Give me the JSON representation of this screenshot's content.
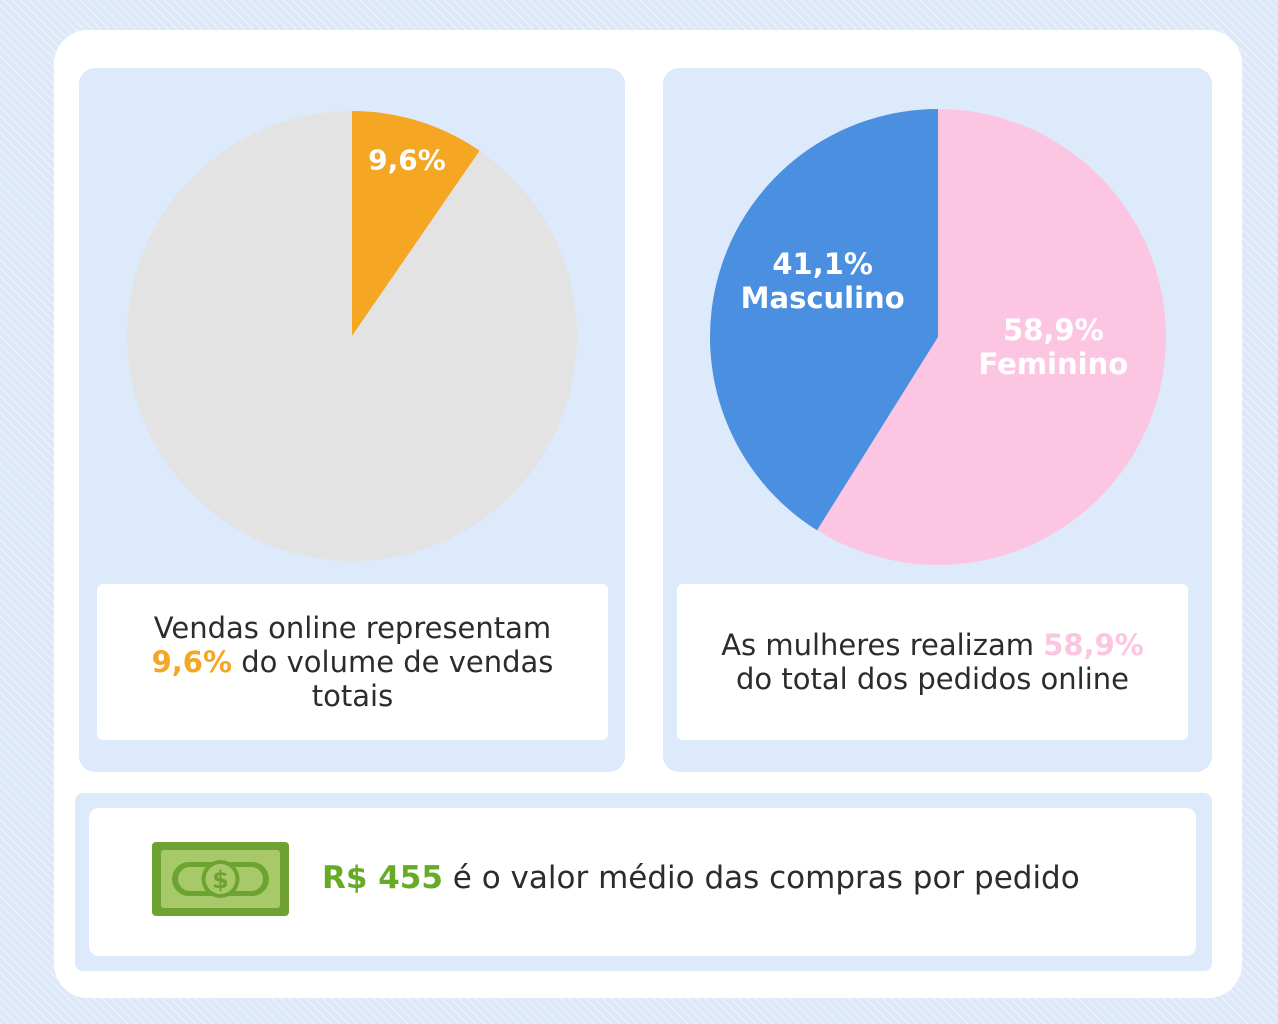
{
  "chart_data": [
    {
      "type": "pie",
      "title": "",
      "slices": [
        {
          "label": "9,6%",
          "value": 9.6,
          "color": "#f5a623"
        },
        {
          "label": "",
          "value": 90.4,
          "color": "#e3e3e3"
        }
      ],
      "caption": {
        "before": "Vendas online representam ",
        "highlight": "9,6%",
        "after": " do volume de vendas totais"
      }
    },
    {
      "type": "pie",
      "title": "",
      "slices": [
        {
          "label_pct": "58,9%",
          "label_name": "Feminino",
          "value": 58.9,
          "color": "#fcc6e2"
        },
        {
          "label_pct": "41,1%",
          "label_name": "Masculino",
          "value": 41.1,
          "color": "#4b8fe0"
        }
      ],
      "caption": {
        "before": "As mulheres realizam ",
        "highlight": "58,9%",
        "after": " do total dos pedidos online"
      }
    }
  ],
  "stat": {
    "value": "R$ 455",
    "text": " é o valor médio das compras por pedido",
    "icon": "money-bill-icon",
    "value_color": "#67aa25"
  }
}
